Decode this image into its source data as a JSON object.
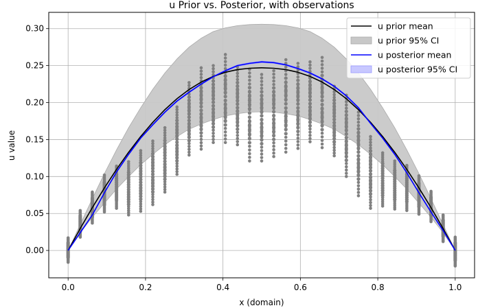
{
  "chart_data": {
    "type": "line",
    "title": "u Prior vs. Posterior, with observations",
    "xlabel": "x (domain)",
    "ylabel": "u value",
    "xlim": [
      -0.05,
      1.05
    ],
    "ylim": [
      -0.037,
      0.322
    ],
    "grid": true,
    "legend_position": "top-right",
    "x_ticks": [
      {
        "value": 0.0,
        "label": "0.0"
      },
      {
        "value": 0.2,
        "label": "0.2"
      },
      {
        "value": 0.4,
        "label": "0.4"
      },
      {
        "value": 0.6,
        "label": "0.6"
      },
      {
        "value": 0.8,
        "label": "0.8"
      },
      {
        "value": 1.0,
        "label": "1.0"
      }
    ],
    "y_ticks": [
      {
        "value": 0.0,
        "label": "0.00"
      },
      {
        "value": 0.05,
        "label": "0.05"
      },
      {
        "value": 0.1,
        "label": "0.10"
      },
      {
        "value": 0.15,
        "label": "0.15"
      },
      {
        "value": 0.2,
        "label": "0.20"
      },
      {
        "value": 0.25,
        "label": "0.25"
      },
      {
        "value": 0.3,
        "label": "0.30"
      }
    ],
    "x": [
      0.0,
      0.03125,
      0.0625,
      0.09375,
      0.125,
      0.15625,
      0.1875,
      0.21875,
      0.25,
      0.28125,
      0.3125,
      0.34375,
      0.375,
      0.40625,
      0.4375,
      0.46875,
      0.5,
      0.53125,
      0.5625,
      0.59375,
      0.625,
      0.65625,
      0.6875,
      0.71875,
      0.75,
      0.78125,
      0.8125,
      0.84375,
      0.875,
      0.90625,
      0.9375,
      0.96875,
      1.0
    ],
    "series": [
      {
        "name": "u prior mean",
        "kind": "line",
        "color": "#000000",
        "values": [
          0.0,
          0.0297,
          0.0579,
          0.0846,
          0.1096,
          0.1328,
          0.1541,
          0.1733,
          0.1904,
          0.2052,
          0.2176,
          0.2277,
          0.2354,
          0.241,
          0.2446,
          0.2464,
          0.247,
          0.2464,
          0.2446,
          0.241,
          0.2354,
          0.2277,
          0.2176,
          0.2052,
          0.1904,
          0.1733,
          0.1541,
          0.1328,
          0.1096,
          0.0846,
          0.0579,
          0.0297,
          0.0
        ]
      },
      {
        "name": "u prior 95% CI",
        "kind": "band",
        "color": "#c8c8c8",
        "lower": [
          0.0,
          0.024,
          0.045,
          0.064,
          0.083,
          0.1,
          0.116,
          0.13,
          0.143,
          0.154,
          0.164,
          0.171,
          0.177,
          0.182,
          0.185,
          0.187,
          0.1875,
          0.187,
          0.185,
          0.182,
          0.177,
          0.171,
          0.164,
          0.154,
          0.143,
          0.13,
          0.116,
          0.1,
          0.083,
          0.064,
          0.045,
          0.024,
          0.0
        ],
        "upper": [
          0.0,
          0.035,
          0.07,
          0.104,
          0.136,
          0.166,
          0.193,
          0.218,
          0.24,
          0.259,
          0.275,
          0.287,
          0.296,
          0.301,
          0.304,
          0.3055,
          0.306,
          0.3055,
          0.304,
          0.301,
          0.296,
          0.287,
          0.275,
          0.259,
          0.24,
          0.218,
          0.193,
          0.166,
          0.136,
          0.104,
          0.07,
          0.035,
          0.0
        ]
      },
      {
        "name": "u posterior mean",
        "kind": "line",
        "color": "#0000ff",
        "values": [
          0.0,
          0.024,
          0.048,
          0.078,
          0.106,
          0.13,
          0.152,
          0.17,
          0.187,
          0.202,
          0.214,
          0.225,
          0.235,
          0.243,
          0.25,
          0.253,
          0.255,
          0.254,
          0.251,
          0.246,
          0.24,
          0.232,
          0.222,
          0.209,
          0.193,
          0.172,
          0.152,
          0.13,
          0.105,
          0.078,
          0.052,
          0.027,
          0.0
        ]
      },
      {
        "name": "u posterior 95% CI",
        "kind": "band",
        "color": "#c8c8ff",
        "lower": [
          0.0,
          0.0235,
          0.0473,
          0.0772,
          0.1051,
          0.1291,
          0.151,
          0.169,
          0.186,
          0.201,
          0.213,
          0.224,
          0.234,
          0.242,
          0.249,
          0.252,
          0.254,
          0.253,
          0.25,
          0.245,
          0.239,
          0.231,
          0.221,
          0.208,
          0.192,
          0.171,
          0.151,
          0.1291,
          0.1042,
          0.0772,
          0.0513,
          0.0265,
          0.0
        ],
        "upper": [
          0.0,
          0.0245,
          0.0487,
          0.0788,
          0.1069,
          0.1309,
          0.153,
          0.171,
          0.188,
          0.203,
          0.215,
          0.226,
          0.236,
          0.244,
          0.251,
          0.254,
          0.256,
          0.255,
          0.252,
          0.247,
          0.241,
          0.233,
          0.223,
          0.21,
          0.194,
          0.173,
          0.153,
          0.1309,
          0.1058,
          0.0788,
          0.0527,
          0.0275,
          0.0
        ]
      }
    ],
    "observations": {
      "name": "observations",
      "kind": "scatter",
      "color": "#808080",
      "columns": [
        {
          "x": 0.0,
          "min": -0.016,
          "max": 0.017
        },
        {
          "x": 0.03125,
          "min": 0.018,
          "max": 0.054
        },
        {
          "x": 0.0625,
          "min": 0.037,
          "max": 0.079
        },
        {
          "x": 0.09375,
          "min": 0.052,
          "max": 0.102
        },
        {
          "x": 0.125,
          "min": 0.057,
          "max": 0.114
        },
        {
          "x": 0.15625,
          "min": 0.048,
          "max": 0.12
        },
        {
          "x": 0.1875,
          "min": 0.053,
          "max": 0.135
        },
        {
          "x": 0.21875,
          "min": 0.062,
          "max": 0.148
        },
        {
          "x": 0.25,
          "min": 0.079,
          "max": 0.166
        },
        {
          "x": 0.28125,
          "min": 0.103,
          "max": 0.194
        },
        {
          "x": 0.3125,
          "min": 0.129,
          "max": 0.227
        },
        {
          "x": 0.34375,
          "min": 0.137,
          "max": 0.247
        },
        {
          "x": 0.375,
          "min": 0.146,
          "max": 0.25
        },
        {
          "x": 0.40625,
          "min": 0.146,
          "max": 0.265
        },
        {
          "x": 0.4375,
          "min": 0.143,
          "max": 0.248
        },
        {
          "x": 0.46875,
          "min": 0.121,
          "max": 0.245
        },
        {
          "x": 0.5,
          "min": 0.121,
          "max": 0.238
        },
        {
          "x": 0.53125,
          "min": 0.127,
          "max": 0.243
        },
        {
          "x": 0.5625,
          "min": 0.133,
          "max": 0.258
        },
        {
          "x": 0.59375,
          "min": 0.138,
          "max": 0.253
        },
        {
          "x": 0.625,
          "min": 0.147,
          "max": 0.255
        },
        {
          "x": 0.65625,
          "min": 0.139,
          "max": 0.261
        },
        {
          "x": 0.6875,
          "min": 0.128,
          "max": 0.222
        },
        {
          "x": 0.71875,
          "min": 0.1,
          "max": 0.21
        },
        {
          "x": 0.75,
          "min": 0.074,
          "max": 0.187
        },
        {
          "x": 0.78125,
          "min": 0.057,
          "max": 0.154
        },
        {
          "x": 0.8125,
          "min": 0.06,
          "max": 0.132
        },
        {
          "x": 0.84375,
          "min": 0.056,
          "max": 0.121
        },
        {
          "x": 0.875,
          "min": 0.054,
          "max": 0.115
        },
        {
          "x": 0.90625,
          "min": 0.049,
          "max": 0.101
        },
        {
          "x": 0.9375,
          "min": 0.039,
          "max": 0.08
        },
        {
          "x": 0.96875,
          "min": 0.012,
          "max": 0.048
        },
        {
          "x": 1.0,
          "min": -0.021,
          "max": 0.018
        }
      ]
    }
  }
}
